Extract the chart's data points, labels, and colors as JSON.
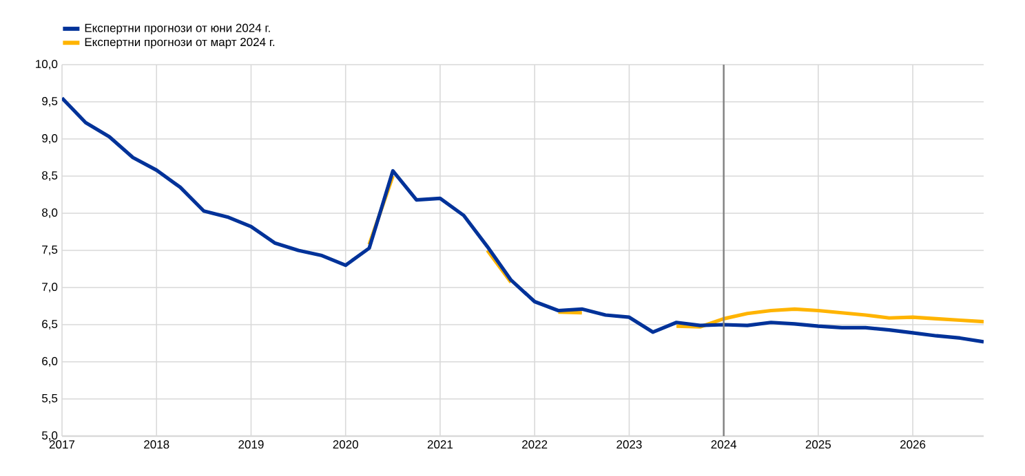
{
  "chart_data": {
    "type": "line",
    "x": [
      2017,
      2017.25,
      2017.5,
      2017.75,
      2018,
      2018.25,
      2018.5,
      2018.75,
      2019,
      2019.25,
      2019.5,
      2019.75,
      2020,
      2020.25,
      2020.5,
      2020.75,
      2021,
      2021.25,
      2021.5,
      2021.75,
      2022,
      2022.25,
      2022.5,
      2022.75,
      2023,
      2023.25,
      2023.5,
      2023.75,
      2024,
      2024.25,
      2024.5,
      2024.75,
      2025,
      2025.25,
      2025.5,
      2025.75,
      2026,
      2026.25,
      2026.5,
      2026.75
    ],
    "series": [
      {
        "name": "Експертни прогнози от юни 2024 г.",
        "color": "#003299",
        "values": [
          9.55,
          9.22,
          9.03,
          8.75,
          8.58,
          8.35,
          8.03,
          7.95,
          7.82,
          7.6,
          7.5,
          7.43,
          7.3,
          7.53,
          8.57,
          8.18,
          8.2,
          7.97,
          7.55,
          7.1,
          6.81,
          6.69,
          6.71,
          6.63,
          6.6,
          6.4,
          6.53,
          6.49,
          6.5,
          6.49,
          6.53,
          6.51,
          6.48,
          6.46,
          6.46,
          6.43,
          6.39,
          6.35,
          6.32,
          6.27
        ]
      },
      {
        "name": "Експертни прогнози от март 2024 г.",
        "color": "#ffb400",
        "values": [
          null,
          null,
          null,
          null,
          null,
          null,
          null,
          null,
          null,
          null,
          null,
          null,
          null,
          7.58,
          8.5,
          null,
          null,
          null,
          7.5,
          7.07,
          null,
          6.67,
          6.66,
          null,
          null,
          null,
          6.48,
          6.47,
          6.58,
          6.65,
          6.69,
          6.71,
          6.69,
          6.66,
          6.63,
          6.59,
          6.6,
          6.58,
          6.56,
          6.54
        ]
      }
    ],
    "xlim": [
      2017,
      2026.75
    ],
    "xticks": [
      2017,
      2018,
      2019,
      2020,
      2021,
      2022,
      2023,
      2024,
      2025,
      2026
    ],
    "ylim": [
      5,
      10
    ],
    "yticks": [
      {
        "value": 5,
        "label": "5,0"
      },
      {
        "value": 5.5,
        "label": "5,5"
      },
      {
        "value": 6,
        "label": "6,0"
      },
      {
        "value": 6.5,
        "label": "6,5"
      },
      {
        "value": 7,
        "label": "7,0"
      },
      {
        "value": 7.5,
        "label": "7,5"
      },
      {
        "value": 8,
        "label": "8,0"
      },
      {
        "value": 8.5,
        "label": "8,5"
      },
      {
        "value": 9,
        "label": "9,0"
      },
      {
        "value": 9.5,
        "label": "9,5"
      },
      {
        "value": 10,
        "label": "10,0"
      }
    ],
    "grid": true,
    "legend": "top left",
    "marker": "none",
    "line_style": "solid",
    "ref_lines": [
      {
        "axis": "x",
        "value": 2024,
        "color": "#7f7f7f"
      }
    ]
  }
}
